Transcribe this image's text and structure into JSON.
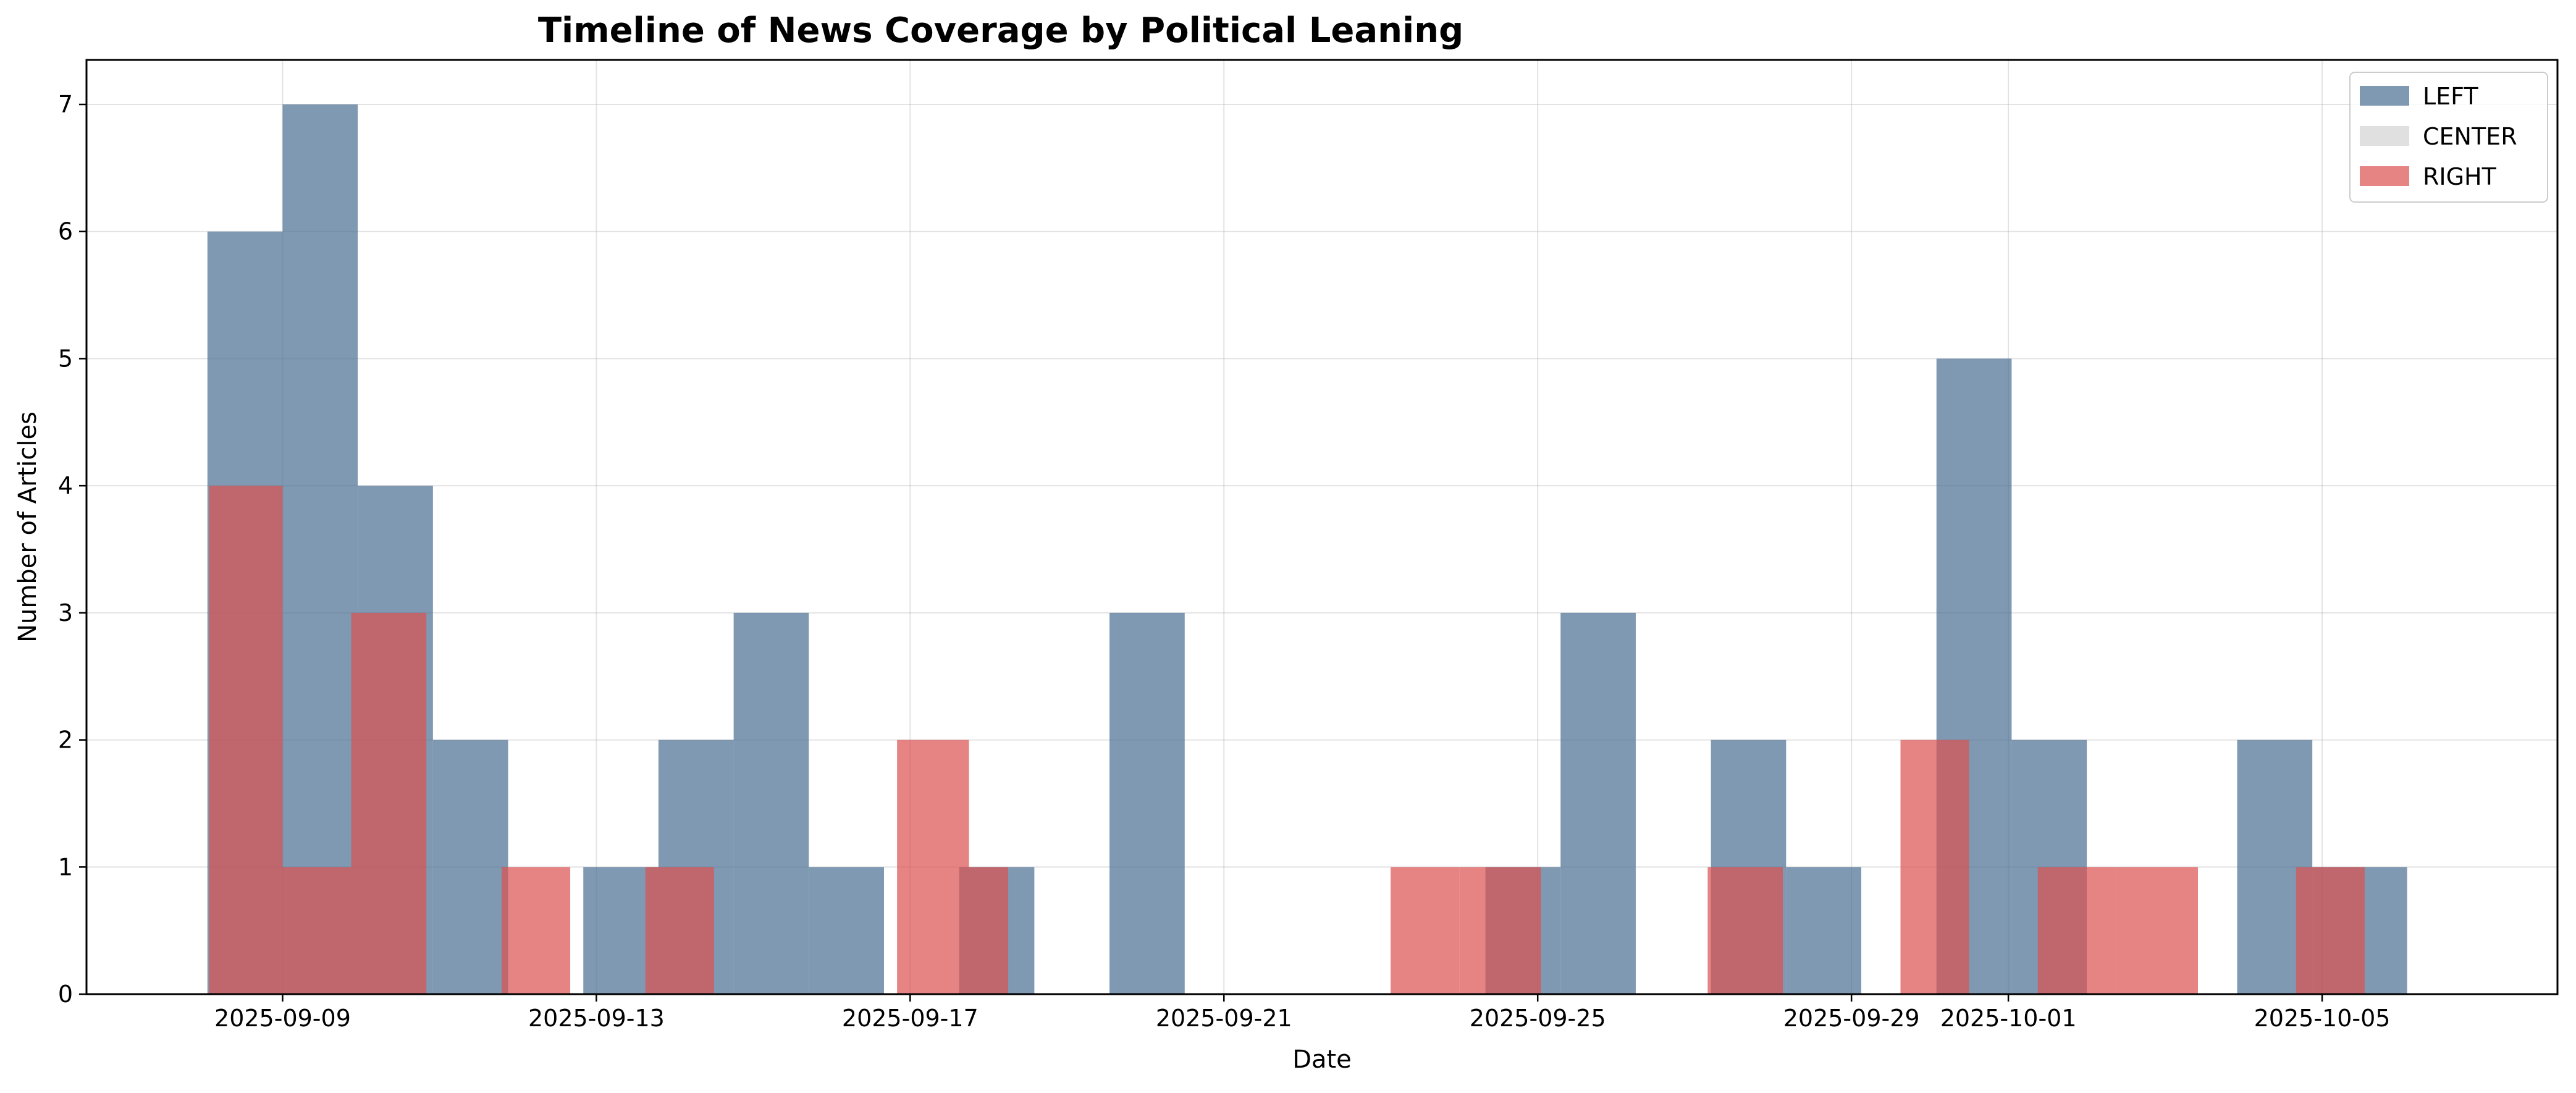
{
  "chart_data": {
    "type": "bar",
    "title": "Timeline of News Coverage by Political Leaning",
    "xlabel": "Date",
    "ylabel": "Number of Articles",
    "xlim": [
      "2025-09-06T12:00",
      "2025-10-08T00:00"
    ],
    "ylim": [
      0,
      7.35
    ],
    "x_ticks": [
      "2025-09-09",
      "2025-09-13",
      "2025-09-17",
      "2025-09-21",
      "2025-09-25",
      "2025-09-29",
      "2025-10-01",
      "2025-10-05"
    ],
    "y_ticks": [
      0,
      1,
      2,
      3,
      4,
      5,
      6,
      7
    ],
    "grid": true,
    "legend_position": "top-right",
    "series": [
      {
        "name": "LEFT",
        "color": "#4a6d92",
        "opacity": 0.7,
        "bins": [
          {
            "start": "2025-09-08T01:00",
            "end": "2025-09-09T00:00",
            "value": 6
          },
          {
            "start": "2025-09-09T00:00",
            "end": "2025-09-09T23:00",
            "value": 7
          },
          {
            "start": "2025-09-09T23:00",
            "end": "2025-09-10T22:00",
            "value": 4
          },
          {
            "start": "2025-09-10T22:00",
            "end": "2025-09-11T21:00",
            "value": 2
          },
          {
            "start": "2025-09-11T21:00",
            "end": "2025-09-12T20:00",
            "value": 0
          },
          {
            "start": "2025-09-12T20:00",
            "end": "2025-09-13T19:00",
            "value": 1
          },
          {
            "start": "2025-09-13T19:00",
            "end": "2025-09-14T18:00",
            "value": 2
          },
          {
            "start": "2025-09-14T18:00",
            "end": "2025-09-15T17:00",
            "value": 3
          },
          {
            "start": "2025-09-15T17:00",
            "end": "2025-09-16T16:00",
            "value": 1
          },
          {
            "start": "2025-09-16T16:00",
            "end": "2025-09-17T15:00",
            "value": 0
          },
          {
            "start": "2025-09-17T15:00",
            "end": "2025-09-18T14:00",
            "value": 1
          },
          {
            "start": "2025-09-18T14:00",
            "end": "2025-09-19T13:00",
            "value": 0
          },
          {
            "start": "2025-09-19T13:00",
            "end": "2025-09-20T12:00",
            "value": 3
          },
          {
            "start": "2025-09-20T12:00",
            "end": "2025-09-21T11:00",
            "value": 0
          },
          {
            "start": "2025-09-21T11:00",
            "end": "2025-09-22T10:00",
            "value": 0
          },
          {
            "start": "2025-09-22T10:00",
            "end": "2025-09-23T09:00",
            "value": 0
          },
          {
            "start": "2025-09-23T09:00",
            "end": "2025-09-24T08:00",
            "value": 0
          },
          {
            "start": "2025-09-24T08:00",
            "end": "2025-09-25T07:00",
            "value": 1
          },
          {
            "start": "2025-09-25T07:00",
            "end": "2025-09-26T06:00",
            "value": 3
          },
          {
            "start": "2025-09-26T06:00",
            "end": "2025-09-27T05:00",
            "value": 0
          },
          {
            "start": "2025-09-27T05:00",
            "end": "2025-09-28T04:00",
            "value": 2
          },
          {
            "start": "2025-09-28T04:00",
            "end": "2025-09-29T03:00",
            "value": 1
          },
          {
            "start": "2025-09-29T03:00",
            "end": "2025-09-30T02:00",
            "value": 0
          },
          {
            "start": "2025-09-30T02:00",
            "end": "2025-10-01T01:00",
            "value": 5
          },
          {
            "start": "2025-10-01T01:00",
            "end": "2025-10-02T00:00",
            "value": 2
          },
          {
            "start": "2025-10-02T00:00",
            "end": "2025-10-02T23:00",
            "value": 0
          },
          {
            "start": "2025-10-02T23:00",
            "end": "2025-10-03T22:00",
            "value": 0
          },
          {
            "start": "2025-10-03T22:00",
            "end": "2025-10-04T21:00",
            "value": 2
          },
          {
            "start": "2025-10-04T21:00",
            "end": "2025-10-06T02:00",
            "value": 1
          }
        ]
      },
      {
        "name": "CENTER",
        "color": "#d3d3d3",
        "opacity": 0.7,
        "bins": []
      },
      {
        "name": "RIGHT",
        "color": "#dc5050",
        "opacity": 0.7,
        "bins": [
          {
            "start": "2025-09-08T01:30",
            "end": "2025-09-09T00:00",
            "value": 4
          },
          {
            "start": "2025-09-09T00:00",
            "end": "2025-09-09T21:00",
            "value": 1
          },
          {
            "start": "2025-09-09T21:00",
            "end": "2025-09-10T20:00",
            "value": 3
          },
          {
            "start": "2025-09-10T20:00",
            "end": "2025-09-11T19:00",
            "value": 0
          },
          {
            "start": "2025-09-11T19:00",
            "end": "2025-09-12T16:00",
            "value": 1
          },
          {
            "start": "2025-09-12T16:00",
            "end": "2025-09-13T15:00",
            "value": 0
          },
          {
            "start": "2025-09-13T15:00",
            "end": "2025-09-14T12:00",
            "value": 1
          },
          {
            "start": "2025-09-14T12:00",
            "end": "2025-09-16T20:00",
            "value": 0
          },
          {
            "start": "2025-09-16T20:00",
            "end": "2025-09-17T18:00",
            "value": 2
          },
          {
            "start": "2025-09-17T18:00",
            "end": "2025-09-18T06:00",
            "value": 1
          },
          {
            "start": "2025-09-18T06:00",
            "end": "2025-09-23T03:00",
            "value": 0
          },
          {
            "start": "2025-09-23T03:00",
            "end": "2025-09-24T00:00",
            "value": 1
          },
          {
            "start": "2025-09-24T00:00",
            "end": "2025-09-25T01:00",
            "value": 1
          },
          {
            "start": "2025-09-25T01:00",
            "end": "2025-09-27T04:00",
            "value": 0
          },
          {
            "start": "2025-09-27T04:00",
            "end": "2025-09-28T03:00",
            "value": 1
          },
          {
            "start": "2025-09-28T03:00",
            "end": "2025-09-29T15:00",
            "value": 0
          },
          {
            "start": "2025-09-29T15:00",
            "end": "2025-09-30T12:00",
            "value": 2
          },
          {
            "start": "2025-09-30T12:00",
            "end": "2025-10-01T09:00",
            "value": 0
          },
          {
            "start": "2025-10-01T09:00",
            "end": "2025-10-02T09:00",
            "value": 1
          },
          {
            "start": "2025-10-02T09:00",
            "end": "2025-10-03T10:00",
            "value": 1
          },
          {
            "start": "2025-10-03T10:00",
            "end": "2025-10-04T16:00",
            "value": 0
          },
          {
            "start": "2025-10-04T16:00",
            "end": "2025-10-05T13:00",
            "value": 1
          }
        ]
      }
    ]
  }
}
